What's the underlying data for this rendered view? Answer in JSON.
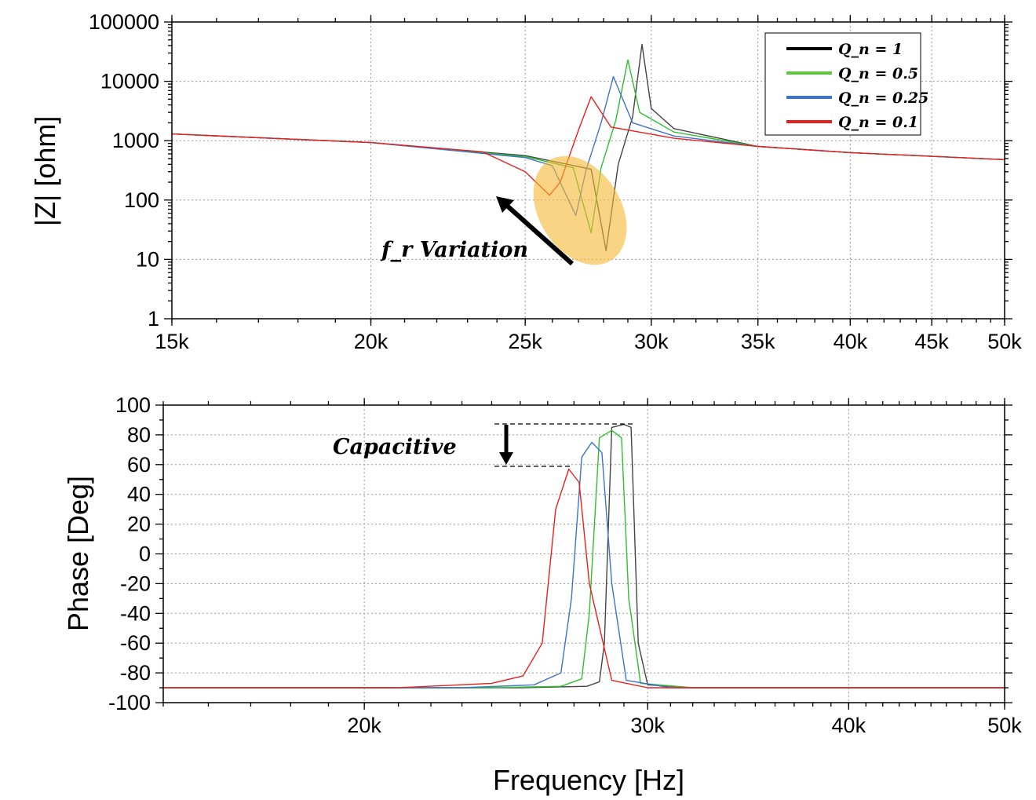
{
  "chart_data": [
    {
      "type": "line",
      "xscale": "log",
      "yscale": "log",
      "xlim": [
        15000,
        50000
      ],
      "ylim": [
        1,
        100000
      ],
      "grid": true,
      "ylabel": "|Z| [ohm]",
      "xticks": [
        15000,
        20000,
        25000,
        30000,
        35000,
        40000,
        45000,
        50000
      ],
      "xtick_labels": [
        "15k",
        "20k",
        "25k",
        "30k",
        "35k",
        "40k",
        "45k",
        "50k"
      ],
      "yticks": [
        1,
        10,
        100,
        1000,
        10000,
        100000
      ],
      "ytick_labels": [
        "1",
        "10",
        "100",
        "1000",
        "10000",
        "100000"
      ],
      "legend_position": "top-right",
      "legend": [
        {
          "label": "Q_n = 1",
          "color": "#000000"
        },
        {
          "label": "Q_n = 0.5",
          "color": "#5cc83a"
        },
        {
          "label": "Q_n = 0.25",
          "color": "#3f73c8"
        },
        {
          "label": "Q_n = 0.1",
          "color": "#e8201c"
        }
      ],
      "annotation": "f_r Variation",
      "series": [
        {
          "color": "#444444",
          "x": [
            15000,
            20000,
            25000,
            27500,
            28100,
            28600,
            29200,
            29600,
            30000,
            31000,
            35000,
            40000,
            50000
          ],
          "y": [
            1300,
            930,
            560,
            330,
            14,
            400,
            2500,
            42000,
            3500,
            1600,
            800,
            630,
            480
          ]
        },
        {
          "color": "#2ec02e",
          "x": [
            15000,
            20000,
            25000,
            26800,
            27500,
            27900,
            28500,
            29000,
            29500,
            31000,
            35000,
            40000,
            50000
          ],
          "y": [
            1300,
            930,
            540,
            350,
            28,
            350,
            2200,
            23000,
            3000,
            1400,
            800,
            630,
            480
          ]
        },
        {
          "color": "#3f73c8",
          "x": [
            15000,
            20000,
            25000,
            26000,
            26900,
            27300,
            27900,
            28400,
            29200,
            31000,
            35000,
            40000,
            50000
          ],
          "y": [
            1300,
            930,
            520,
            380,
            55,
            320,
            2000,
            12000,
            2000,
            1200,
            800,
            630,
            480
          ]
        },
        {
          "color": "#e8201c",
          "x": [
            15000,
            20000,
            23500,
            25000,
            25900,
            26300,
            27000,
            27500,
            28300,
            31000,
            35000,
            40000,
            50000
          ],
          "y": [
            1300,
            930,
            650,
            300,
            120,
            200,
            1500,
            5500,
            1700,
            1100,
            800,
            630,
            480
          ]
        }
      ]
    },
    {
      "type": "line",
      "xscale": "log",
      "xlim": [
        15000,
        50000
      ],
      "ylim": [
        -100,
        100
      ],
      "grid": true,
      "xlabel": "Frequency [Hz]",
      "ylabel": "Phase [Deg]",
      "xticks": [
        20000,
        30000,
        40000,
        50000
      ],
      "xtick_labels": [
        "20k",
        "30k",
        "40k",
        "50k"
      ],
      "yticks": [
        -100,
        -80,
        -60,
        -40,
        -20,
        0,
        20,
        40,
        60,
        80,
        100
      ],
      "ytick_labels": [
        "-100",
        "-80",
        "-60",
        "-40",
        "-20",
        "0",
        "20",
        "40",
        "60",
        "80",
        "100"
      ],
      "annotation": "Capacitive",
      "series": [
        {
          "color": "#444444",
          "x": [
            15000,
            25000,
            27500,
            28000,
            28200,
            28500,
            29000,
            29300,
            29600,
            30000,
            32000,
            50000
          ],
          "y": [
            -90,
            -90,
            -89,
            -86,
            -60,
            85,
            87,
            85,
            -60,
            -88,
            -90,
            -90
          ]
        },
        {
          "color": "#2ec02e",
          "x": [
            15000,
            24000,
            26500,
            27300,
            27600,
            28000,
            28500,
            28900,
            29200,
            29700,
            32000,
            50000
          ],
          "y": [
            -90,
            -90,
            -89,
            -84,
            -40,
            78,
            83,
            78,
            -30,
            -87,
            -90,
            -90
          ]
        },
        {
          "color": "#3f73c8",
          "x": [
            15000,
            23000,
            25500,
            26500,
            26900,
            27300,
            27700,
            28100,
            28500,
            29100,
            31000,
            50000
          ],
          "y": [
            -90,
            -90,
            -88,
            -80,
            -30,
            65,
            75,
            68,
            -20,
            -85,
            -90,
            -90
          ]
        },
        {
          "color": "#e8201c",
          "x": [
            15000,
            21000,
            24000,
            25100,
            25800,
            26300,
            26800,
            27200,
            27600,
            28500,
            30000,
            50000
          ],
          "y": [
            -90,
            -90,
            -87,
            -82,
            -60,
            30,
            57,
            48,
            -20,
            -85,
            -90,
            -90
          ]
        }
      ]
    }
  ]
}
